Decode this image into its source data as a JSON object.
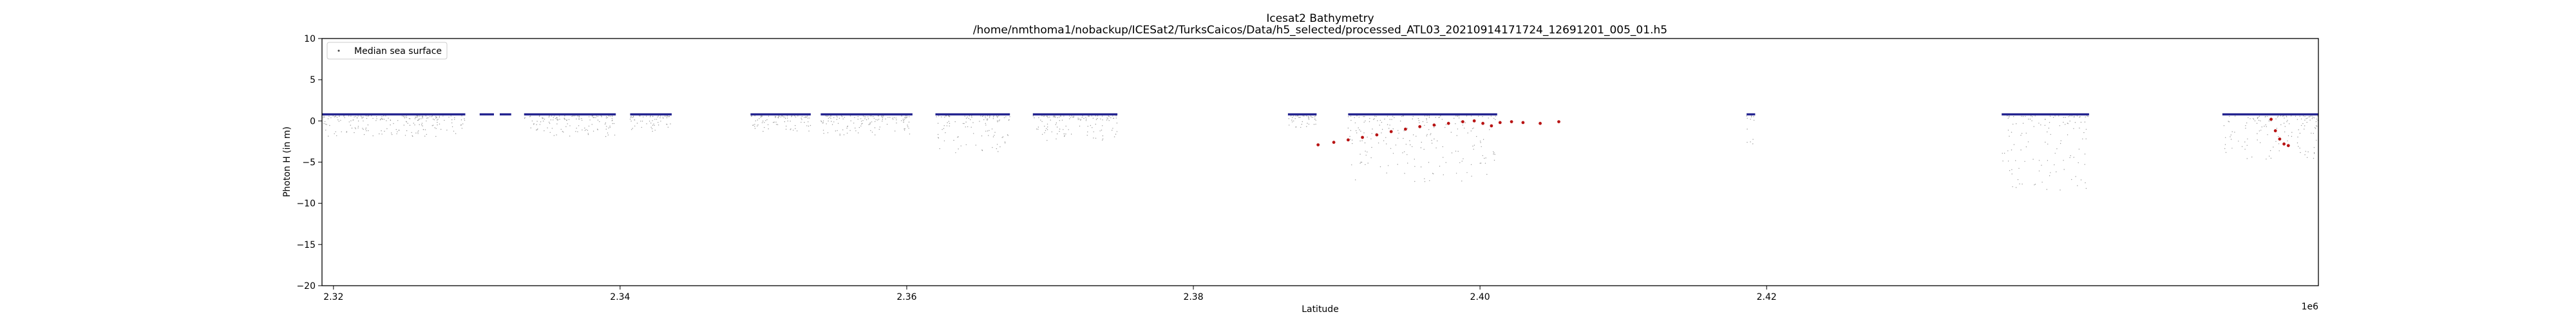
{
  "chart_data": {
    "type": "scatter",
    "title": "Icesat2 Bathymetry",
    "subtitle": "/home/nmthoma1/nobackup/ICESat2/TurksCaicos/Data/h5_selected/processed_ATL03_20210914171724_12691201_005_01.h5",
    "xlabel": "Latitude",
    "ylabel": "Photon H (in m)",
    "x_offset_label": "1e6",
    "xlim": [
      2.3192,
      2.4585
    ],
    "ylim": [
      -20,
      10
    ],
    "x_ticks": [
      {
        "value": 2.32,
        "label": "2.32"
      },
      {
        "value": 2.34,
        "label": "2.34"
      },
      {
        "value": 2.36,
        "label": "2.36"
      },
      {
        "value": 2.38,
        "label": "2.38"
      },
      {
        "value": 2.4,
        "label": "2.40"
      },
      {
        "value": 2.42,
        "label": "2.42"
      }
    ],
    "y_ticks": [
      {
        "value": 10,
        "label": "10"
      },
      {
        "value": 5,
        "label": "5"
      },
      {
        "value": 0,
        "label": "0"
      },
      {
        "value": -5,
        "label": "−5"
      },
      {
        "value": -10,
        "label": "−10"
      },
      {
        "value": -15,
        "label": "−15"
      },
      {
        "value": -20,
        "label": "−20"
      }
    ],
    "grid": false,
    "legend": {
      "placement": "top-left",
      "entries": [
        "Median sea surface"
      ]
    },
    "colors": {
      "raw_photons": "#9a9a9a",
      "sea_surface": "#1c1c8c",
      "bathymetry": "#b81414"
    },
    "series": [
      {
        "name": "Median sea surface",
        "color": "#1c1c8c",
        "segments": [
          [
            2.3192,
            2.3292
          ],
          [
            2.3302,
            2.3312
          ],
          [
            2.3316,
            2.3324
          ],
          [
            2.3333,
            2.3397
          ],
          [
            2.3407,
            2.3436
          ],
          [
            2.3491,
            2.3533
          ],
          [
            2.354,
            2.3604
          ],
          [
            2.362,
            2.3672
          ],
          [
            2.3688,
            2.3747
          ],
          [
            2.3866,
            2.3886
          ],
          [
            2.3908,
            2.4012
          ],
          [
            2.4186,
            2.4192
          ],
          [
            2.4364,
            2.4425
          ],
          [
            2.4518,
            2.4585
          ]
        ],
        "y": 0.8
      },
      {
        "color": "#b81414",
        "points": [
          [
            2.3887,
            -2.9
          ],
          [
            2.3898,
            -2.6
          ],
          [
            2.3908,
            -2.3
          ],
          [
            2.3918,
            -2.0
          ],
          [
            2.3928,
            -1.7
          ],
          [
            2.3938,
            -1.3
          ],
          [
            2.3948,
            -1.0
          ],
          [
            2.3958,
            -0.7
          ],
          [
            2.3968,
            -0.5
          ],
          [
            2.3978,
            -0.3
          ],
          [
            2.3988,
            -0.1
          ],
          [
            2.3996,
            0.0
          ],
          [
            2.4002,
            -0.3
          ],
          [
            2.4008,
            -0.6
          ],
          [
            2.4014,
            -0.2
          ],
          [
            2.4022,
            -0.1
          ],
          [
            2.403,
            -0.2
          ],
          [
            2.4042,
            -0.3
          ],
          [
            2.4055,
            -0.1
          ],
          [
            2.4552,
            0.2
          ],
          [
            2.4555,
            -1.2
          ],
          [
            2.4558,
            -2.2
          ],
          [
            2.4561,
            -2.8
          ],
          [
            2.4564,
            -3.0
          ]
        ]
      }
    ],
    "photon_scatter": {
      "color": "#9a9a9a",
      "regions": [
        [
          2.3192,
          2.3292,
          2.5
        ],
        [
          2.3333,
          2.3397,
          2.5
        ],
        [
          2.3407,
          2.3436,
          2.0
        ],
        [
          2.3491,
          2.3533,
          2.0
        ],
        [
          2.354,
          2.3604,
          2.5
        ],
        [
          2.362,
          2.3672,
          4.5
        ],
        [
          2.3688,
          2.3747,
          3.0
        ],
        [
          2.3866,
          2.3886,
          1.5
        ],
        [
          2.3908,
          2.4012,
          8.0
        ],
        [
          2.4186,
          2.4192,
          3.5
        ],
        [
          2.4364,
          2.4425,
          9.0
        ],
        [
          2.4518,
          2.4585,
          5.5
        ]
      ]
    }
  }
}
